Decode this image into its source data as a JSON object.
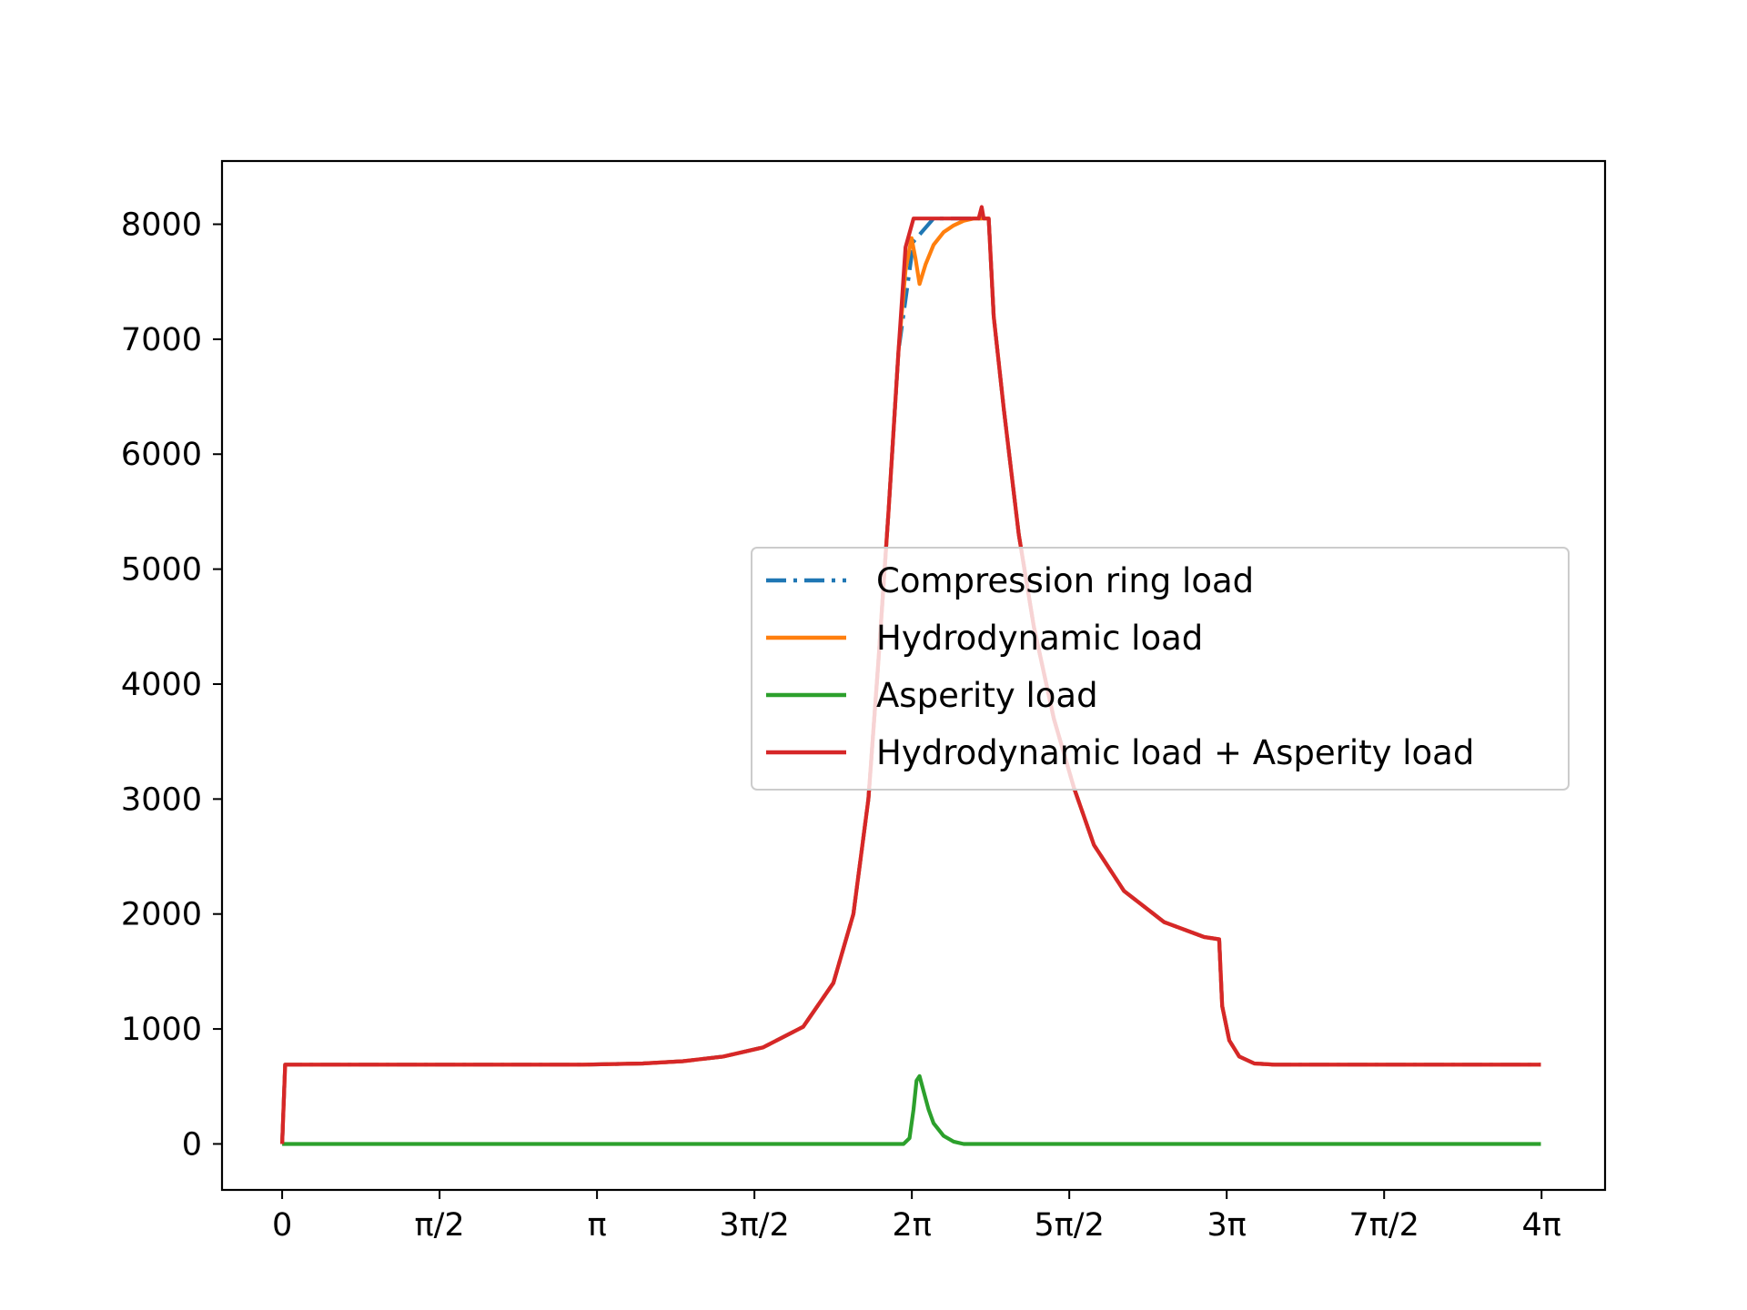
{
  "chart_data": {
    "type": "line",
    "title": "",
    "xlabel": "",
    "ylabel": "",
    "xlim": [
      -0.6,
      13.2
    ],
    "ylim": [
      -400,
      8550
    ],
    "xticks": [
      {
        "value": 0,
        "label": "0"
      },
      {
        "value": 1.5708,
        "label": "π/2"
      },
      {
        "value": 3.1416,
        "label": "π"
      },
      {
        "value": 4.7124,
        "label": "3π/2"
      },
      {
        "value": 6.2832,
        "label": "2π"
      },
      {
        "value": 7.854,
        "label": "5π/2"
      },
      {
        "value": 9.4248,
        "label": "3π"
      },
      {
        "value": 10.9956,
        "label": "7π/2"
      },
      {
        "value": 12.5664,
        "label": "4π"
      }
    ],
    "yticks": [
      {
        "value": 0,
        "label": "0"
      },
      {
        "value": 1000,
        "label": "1000"
      },
      {
        "value": 2000,
        "label": "2000"
      },
      {
        "value": 3000,
        "label": "3000"
      },
      {
        "value": 4000,
        "label": "4000"
      },
      {
        "value": 5000,
        "label": "5000"
      },
      {
        "value": 6000,
        "label": "6000"
      },
      {
        "value": 7000,
        "label": "7000"
      },
      {
        "value": 8000,
        "label": "8000"
      }
    ],
    "grid": false,
    "legend_position": "center-right",
    "series": [
      {
        "name": "Compression ring load",
        "color": "#1f77b4",
        "style": "dashdot",
        "x": [
          0,
          0.03,
          1.0,
          2.0,
          3.0,
          3.6,
          4.0,
          4.4,
          4.8,
          5.2,
          5.5,
          5.7,
          5.85,
          5.95,
          6.05,
          6.15,
          6.3,
          6.5,
          6.8,
          7.0,
          7.05,
          7.1,
          7.2,
          7.35,
          7.5,
          7.7,
          7.9,
          8.1,
          8.4,
          8.8,
          9.2,
          9.35,
          9.38,
          9.45,
          9.55,
          9.7,
          9.9,
          10.5,
          11.5,
          12.56
        ],
        "y": [
          0,
          690,
          690,
          690,
          690,
          700,
          720,
          760,
          840,
          1020,
          1400,
          2000,
          3000,
          4200,
          5500,
          6900,
          7850,
          8050,
          8050,
          8050,
          8050,
          7200,
          6400,
          5300,
          4500,
          3700,
          3100,
          2600,
          2200,
          1930,
          1800,
          1780,
          1200,
          900,
          760,
          700,
          690,
          690,
          690,
          690
        ]
      },
      {
        "name": "Hydrodynamic load",
        "color": "#ff7f0e",
        "style": "solid",
        "x": [
          0,
          0.03,
          1.0,
          2.0,
          3.0,
          3.6,
          4.0,
          4.4,
          4.8,
          5.2,
          5.5,
          5.7,
          5.85,
          5.95,
          6.05,
          6.15,
          6.22,
          6.28,
          6.32,
          6.36,
          6.42,
          6.5,
          6.6,
          6.7,
          6.8,
          6.9,
          7.0,
          7.05,
          7.1,
          7.2,
          7.35,
          7.5,
          7.7,
          7.9,
          8.1,
          8.4,
          8.8,
          9.2,
          9.35,
          9.38,
          9.45,
          9.55,
          9.7,
          9.9,
          10.5,
          11.5,
          12.56
        ],
        "y": [
          0,
          690,
          690,
          690,
          690,
          700,
          720,
          760,
          840,
          1020,
          1400,
          2000,
          3000,
          4200,
          5500,
          6900,
          7600,
          7880,
          7700,
          7480,
          7650,
          7820,
          7930,
          7990,
          8030,
          8050,
          8050,
          8050,
          7200,
          6400,
          5300,
          4500,
          3700,
          3100,
          2600,
          2200,
          1930,
          1800,
          1780,
          1200,
          900,
          760,
          700,
          690,
          690,
          690,
          690
        ]
      },
      {
        "name": "Asperity load",
        "color": "#2ca02c",
        "style": "solid",
        "x": [
          0,
          1.0,
          2.0,
          3.0,
          4.0,
          5.0,
          6.0,
          6.2,
          6.26,
          6.3,
          6.33,
          6.36,
          6.4,
          6.45,
          6.5,
          6.6,
          6.7,
          6.8,
          7.0,
          8.0,
          9.0,
          10.0,
          11.0,
          12.56
        ],
        "y": [
          0,
          0,
          0,
          0,
          0,
          0,
          0,
          0,
          50,
          300,
          550,
          590,
          460,
          300,
          180,
          70,
          20,
          0,
          0,
          0,
          0,
          0,
          0,
          0
        ]
      },
      {
        "name": "Hydrodynamic load + Asperity load",
        "color": "#d62728",
        "style": "solid",
        "x": [
          0,
          0.03,
          1.0,
          2.0,
          3.0,
          3.6,
          4.0,
          4.4,
          4.8,
          5.2,
          5.5,
          5.7,
          5.85,
          5.95,
          6.05,
          6.15,
          6.22,
          6.3,
          6.5,
          6.8,
          6.95,
          6.98,
          7.0,
          7.05,
          7.1,
          7.2,
          7.35,
          7.5,
          7.7,
          7.9,
          8.1,
          8.4,
          8.8,
          9.2,
          9.35,
          9.38,
          9.45,
          9.55,
          9.7,
          9.9,
          10.5,
          11.5,
          12.56
        ],
        "y": [
          0,
          690,
          690,
          690,
          690,
          700,
          720,
          760,
          840,
          1020,
          1400,
          2000,
          3000,
          4200,
          5500,
          6900,
          7800,
          8050,
          8050,
          8050,
          8050,
          8150,
          8050,
          8050,
          7200,
          6400,
          5300,
          4500,
          3700,
          3100,
          2600,
          2200,
          1930,
          1800,
          1780,
          1200,
          900,
          760,
          700,
          690,
          690,
          690,
          690
        ]
      }
    ]
  }
}
